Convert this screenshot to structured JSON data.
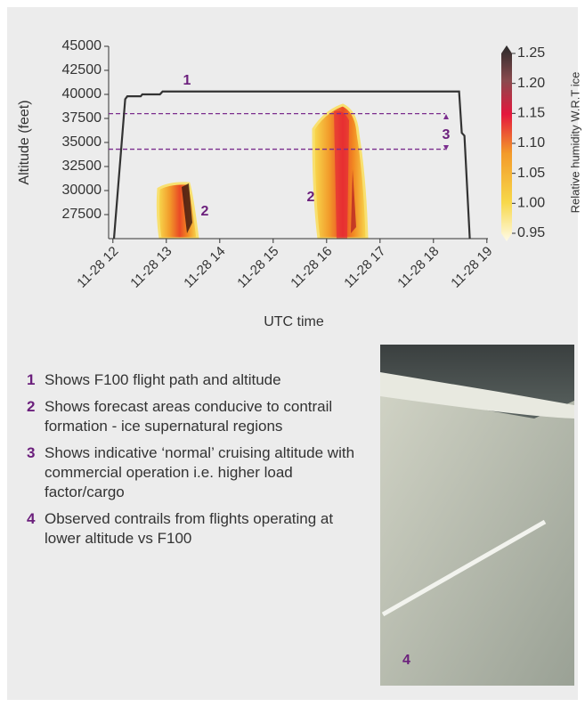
{
  "chart_data": {
    "type": "line",
    "y_label": "Altitude (feet)",
    "x_label": "UTC time",
    "xlim": [
      11.92,
      19.02
    ],
    "xticks": [
      {
        "value": 12,
        "label": "11-28 12"
      },
      {
        "value": 13,
        "label": "11-28 13"
      },
      {
        "value": 14,
        "label": "11-28 14"
      },
      {
        "value": 15,
        "label": "11-28 15"
      },
      {
        "value": 16,
        "label": "11-28 16"
      },
      {
        "value": 17,
        "label": "11-28 17"
      },
      {
        "value": 18,
        "label": "11-28 18"
      },
      {
        "value": 19,
        "label": "11-28 19"
      }
    ],
    "ylim": [
      25000,
      45000
    ],
    "yticks": [
      27500,
      30000,
      32500,
      35000,
      37500,
      40000,
      42500,
      45000
    ],
    "series": [
      {
        "color": "#333333",
        "x": [
          12.02,
          12.23,
          12.27,
          12.52,
          12.55,
          12.88,
          12.93,
          18.48,
          18.53,
          18.58,
          18.68
        ],
        "values": [
          25000,
          39500,
          39800,
          39800,
          40000,
          40000,
          40300,
          40300,
          36000,
          35700,
          25000
        ]
      }
    ],
    "reference_lines": {
      "color": "#7b2d8e",
      "values": [
        38000,
        34300
      ]
    },
    "annotations": [
      "1",
      "2",
      "2",
      "3"
    ],
    "colorbar": {
      "label": "Relative humidity W.R.T ice",
      "lim": [
        0.95,
        1.25
      ],
      "ticks": [
        {
          "value": 1.25,
          "label": "1.25"
        },
        {
          "value": 1.2,
          "label": "1.20"
        },
        {
          "value": 1.15,
          "label": "1.15"
        },
        {
          "value": 1.1,
          "label": "1.10"
        },
        {
          "value": 1.05,
          "label": "1.05"
        },
        {
          "value": 1.0,
          "label": "1.00"
        },
        {
          "value": 0.95,
          "label": "0.95"
        }
      ]
    }
  },
  "notes": [
    {
      "number": "1",
      "text": "Shows F100 flight path and altitude"
    },
    {
      "number": "2",
      "text": "Shows forecast areas conducive to contrail formation - ice supernatural regions"
    },
    {
      "number": "3",
      "text": "Shows indicative ‘normal’ cruising altitude with commercial operation i.e. higher load factor/cargo"
    },
    {
      "number": "4",
      "text": "Observed contrails from flights operating at lower altitude vs F100"
    }
  ],
  "photo": {
    "label": "4"
  }
}
